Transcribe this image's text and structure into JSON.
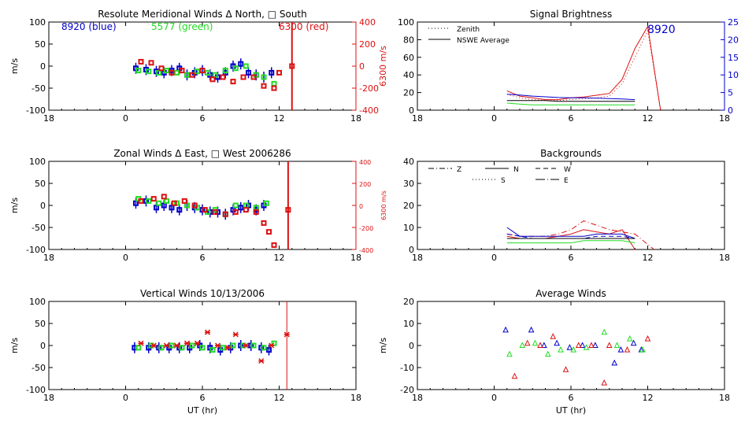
{
  "colors": {
    "blue": "#0000cc",
    "green": "#22dd22",
    "red": "#dd1111",
    "black": "#000000"
  },
  "chart_data": [
    {
      "id": "meridional",
      "type": "scatter",
      "title": "Resolute Meridional Winds Δ North, □ South",
      "ylabel": "m/s",
      "y2label": "6300 m/s",
      "xlim": [
        -6,
        18
      ],
      "ylim": [
        -100,
        100
      ],
      "y2lim": [
        -400,
        400
      ],
      "x_ticks": [
        "18",
        "0",
        "6",
        "12",
        "18"
      ],
      "y_ticks": [
        "100",
        "50",
        "0",
        "-50",
        "-100"
      ],
      "y2_ticks": [
        "400",
        "200",
        "0",
        "-200",
        "-400"
      ],
      "annotations": [
        {
          "text": "8920 (blue)",
          "color": "blue"
        },
        {
          "text": "5577 (green)",
          "color": "green"
        },
        {
          "text": "6300 (red)",
          "color": "red"
        }
      ],
      "vline_x": 13,
      "series": [
        {
          "color": "blue",
          "marker": "square",
          "errorbars": true,
          "x": [
            0.8,
            1.6,
            2.4,
            3.0,
            3.6,
            4.2,
            4.8,
            5.4,
            6.0,
            6.6,
            7.2,
            7.8,
            8.4,
            9.0,
            9.6,
            10.2,
            10.8,
            11.4
          ],
          "y": [
            -5,
            -8,
            -12,
            -15,
            -10,
            -5,
            -20,
            -15,
            -10,
            -20,
            -25,
            -15,
            0,
            5,
            -15,
            -20,
            -25,
            -15
          ]
        },
        {
          "color": "green",
          "marker": "square",
          "x": [
            1.0,
            1.8,
            2.6,
            3.2,
            4.0,
            4.8,
            5.6,
            6.4,
            7.0,
            7.8,
            8.6,
            9.4,
            10.2,
            10.8,
            11.6
          ],
          "y": [
            -10,
            -12,
            -15,
            -10,
            -15,
            -20,
            -12,
            -15,
            -20,
            -10,
            -5,
            0,
            -20,
            -25,
            -40
          ]
        },
        {
          "color": "red",
          "marker": "square",
          "axis": "y2",
          "x": [
            1.2,
            2.0,
            2.8,
            3.6,
            4.4,
            5.2,
            6.0,
            6.8,
            7.6,
            8.4,
            9.2,
            10.0,
            10.8,
            11.6,
            12.0,
            13.0
          ],
          "y": [
            40,
            30,
            -20,
            -60,
            -40,
            -80,
            -40,
            -120,
            -100,
            -140,
            -100,
            -100,
            -180,
            -200,
            -60,
            0
          ]
        }
      ]
    },
    {
      "id": "brightness",
      "type": "line",
      "title": "Signal Brightness",
      "xlim": [
        -6,
        18
      ],
      "ylim": [
        0,
        100
      ],
      "y2lim": [
        0,
        25
      ],
      "x_ticks": [
        "18",
        "0",
        "6",
        "12",
        "18"
      ],
      "y_ticks": [
        "100",
        "80",
        "60",
        "40",
        "20",
        "0"
      ],
      "y2_ticks": [
        "25",
        "20",
        "15",
        "10",
        "5",
        "0"
      ],
      "legend": [
        {
          "label": "Zenith",
          "style": "dotted"
        },
        {
          "label": "NSWE Average",
          "style": "solid"
        }
      ],
      "annotation": "8920",
      "series": [
        {
          "color": "red",
          "style": "solid",
          "x": [
            1,
            2,
            3,
            4,
            5,
            6,
            7,
            8,
            9,
            10,
            11,
            12,
            13
          ],
          "y": [
            22,
            16,
            14,
            12,
            12,
            14,
            15,
            17,
            19,
            35,
            70,
            95,
            0
          ]
        },
        {
          "color": "red",
          "style": "dotted",
          "x": [
            1,
            2,
            3,
            4,
            5,
            6,
            7,
            8,
            9,
            10,
            11,
            12,
            13
          ],
          "y": [
            18,
            14,
            12,
            11,
            11,
            12,
            13,
            14,
            16,
            30,
            60,
            90,
            0
          ]
        },
        {
          "color": "blue",
          "style": "solid",
          "axis": "y2",
          "x": [
            1,
            2,
            3,
            4,
            5,
            6,
            7,
            8,
            9,
            10,
            11
          ],
          "y": [
            4.5,
            4.3,
            4.0,
            3.8,
            3.6,
            3.5,
            3.5,
            3.4,
            3.3,
            3.2,
            3.0
          ]
        },
        {
          "color": "green",
          "style": "solid",
          "x": [
            1,
            2,
            3,
            4,
            5,
            6,
            7,
            8,
            9,
            10,
            11
          ],
          "y": [
            8,
            7,
            6,
            6,
            6,
            6,
            6,
            6,
            6,
            6,
            6
          ]
        },
        {
          "color": "black",
          "style": "solid",
          "x": [
            1,
            2,
            3,
            4,
            5,
            6,
            7,
            8,
            9,
            10,
            11
          ],
          "y": [
            11,
            11,
            11,
            11,
            10,
            10,
            10,
            10,
            10,
            10,
            10
          ]
        }
      ]
    },
    {
      "id": "zonal",
      "type": "scatter",
      "title": "Zonal Winds Δ East, □ West 2006286",
      "ylabel": "m/s",
      "y2label": "6300 m/s",
      "xlim": [
        -6,
        18
      ],
      "ylim": [
        -100,
        100
      ],
      "y2lim": [
        -400,
        400
      ],
      "x_ticks": [
        "18",
        "0",
        "6",
        "12",
        "18"
      ],
      "y_ticks": [
        "100",
        "50",
        "0",
        "-50",
        "-100"
      ],
      "y2_ticks": [
        "400",
        "200",
        "0",
        "-200",
        "-400"
      ],
      "vline_x": 12.7,
      "series": [
        {
          "color": "blue",
          "marker": "square",
          "errorbars": true,
          "x": [
            0.8,
            1.6,
            2.4,
            3.0,
            3.6,
            4.2,
            4.8,
            5.4,
            6.0,
            6.6,
            7.2,
            7.8,
            8.4,
            9.0,
            9.6,
            10.2,
            10.8
          ],
          "y": [
            5,
            10,
            -5,
            0,
            -5,
            -10,
            0,
            -5,
            -10,
            -15,
            -15,
            -20,
            -10,
            -5,
            0,
            -10,
            0
          ]
        },
        {
          "color": "green",
          "marker": "square",
          "x": [
            1.0,
            1.8,
            2.6,
            3.2,
            4.0,
            4.8,
            5.6,
            6.4,
            7.0,
            7.8,
            8.6,
            9.4,
            10.2,
            11.0
          ],
          "y": [
            15,
            10,
            5,
            10,
            5,
            0,
            -5,
            -15,
            -10,
            -20,
            0,
            0,
            -5,
            5
          ]
        },
        {
          "color": "red",
          "marker": "square",
          "axis": "y2",
          "x": [
            1.2,
            2.2,
            3.0,
            3.8,
            4.6,
            5.4,
            6.2,
            7.0,
            7.8,
            8.6,
            9.4,
            10.2,
            10.8,
            11.2,
            11.6,
            12.7
          ],
          "y": [
            40,
            60,
            80,
            20,
            40,
            0,
            -40,
            -60,
            -80,
            -60,
            -40,
            -60,
            -160,
            -240,
            -360,
            -40
          ]
        }
      ]
    },
    {
      "id": "backgrounds",
      "type": "line",
      "title": "Backgrounds",
      "xlim": [
        -6,
        18
      ],
      "ylim": [
        0,
        40
      ],
      "x_ticks": [
        "18",
        "0",
        "6",
        "12",
        "18"
      ],
      "y_ticks": [
        "40",
        "30",
        "20",
        "10",
        "0"
      ],
      "legend": [
        {
          "label": "Z",
          "style": "dashdot"
        },
        {
          "label": "N",
          "style": "solid"
        },
        {
          "label": "W",
          "style": "dashed"
        },
        {
          "label": "S",
          "style": "dotted"
        },
        {
          "label": "E",
          "style": "longdashdot"
        }
      ],
      "series": [
        {
          "color": "red",
          "style": "dashdot",
          "x": [
            1,
            2,
            3,
            4,
            5,
            6,
            7,
            8,
            9,
            10,
            11,
            12.5
          ],
          "y": [
            7,
            6,
            6,
            6,
            7,
            9,
            13,
            11,
            9,
            8,
            7,
            0
          ]
        },
        {
          "color": "red",
          "style": "solid",
          "x": [
            1,
            2,
            3,
            4,
            5,
            6,
            7,
            8,
            9,
            10,
            11
          ],
          "y": [
            6,
            5,
            5,
            5,
            6,
            7,
            9,
            8,
            7,
            9,
            0
          ]
        },
        {
          "color": "blue",
          "style": "solid",
          "x": [
            1,
            2,
            3,
            4,
            5,
            6,
            7,
            8,
            9,
            10,
            11
          ],
          "y": [
            10,
            6,
            6,
            6,
            6,
            6,
            6,
            7,
            7,
            7,
            5
          ]
        },
        {
          "color": "blue",
          "style": "dashed",
          "x": [
            1,
            2,
            3,
            4,
            5,
            6,
            7,
            8,
            9,
            10,
            11
          ],
          "y": [
            7,
            6,
            5,
            5,
            5,
            5,
            5,
            6,
            6,
            6,
            5
          ]
        },
        {
          "color": "green",
          "style": "solid",
          "x": [
            1,
            2,
            3,
            4,
            5,
            6,
            7,
            8,
            9,
            10,
            11
          ],
          "y": [
            3,
            3,
            3,
            3,
            3,
            3,
            4,
            4,
            4,
            4,
            3
          ]
        },
        {
          "color": "black",
          "style": "solid",
          "x": [
            1,
            2,
            3,
            4,
            5,
            6,
            7,
            8,
            9,
            10,
            11
          ],
          "y": [
            5,
            5,
            5,
            5,
            5,
            5,
            5,
            5,
            5,
            5,
            5
          ]
        }
      ]
    },
    {
      "id": "vertical",
      "type": "scatter",
      "title": "Vertical Winds 10/13/2006",
      "ylabel": "m/s",
      "xlabel": "UT (hr)",
      "xlim": [
        -6,
        18
      ],
      "ylim": [
        -100,
        100
      ],
      "x_ticks": [
        "18",
        "0",
        "6",
        "12",
        "18"
      ],
      "y_ticks": [
        "100",
        "50",
        "0",
        "-50",
        "-100"
      ],
      "vline_x": 12.6,
      "series": [
        {
          "color": "blue",
          "marker": "square",
          "errorbars": true,
          "x": [
            0.7,
            1.8,
            2.6,
            3.4,
            4.2,
            5.0,
            5.8,
            6.6,
            7.4,
            8.2,
            9.0,
            9.8,
            10.6,
            11.2
          ],
          "y": [
            -5,
            -5,
            -5,
            -5,
            -5,
            -5,
            0,
            -5,
            -10,
            -5,
            0,
            0,
            -5,
            -10
          ]
        },
        {
          "color": "green",
          "marker": "square",
          "x": [
            1.0,
            2.0,
            2.8,
            3.6,
            4.4,
            5.2,
            6.0,
            6.8,
            7.6,
            8.4,
            9.2,
            10.0,
            10.8,
            11.6
          ],
          "y": [
            -5,
            0,
            -5,
            0,
            -5,
            0,
            -5,
            -10,
            -5,
            0,
            0,
            0,
            -5,
            5
          ]
        },
        {
          "color": "red",
          "marker": "star",
          "x": [
            1.2,
            2.2,
            3.2,
            4.0,
            4.8,
            5.6,
            6.4,
            7.2,
            8.0,
            8.6,
            9.4,
            10.6,
            11.4,
            12.6
          ],
          "y": [
            5,
            0,
            0,
            0,
            5,
            5,
            30,
            0,
            -5,
            25,
            0,
            -35,
            0,
            25
          ]
        }
      ]
    },
    {
      "id": "average",
      "type": "scatter",
      "title": "Average Winds",
      "ylabel": "m/s",
      "xlabel": "UT (hr)",
      "xlim": [
        -6,
        18
      ],
      "ylim": [
        -20,
        20
      ],
      "x_ticks": [
        "18",
        "0",
        "6",
        "12",
        "18"
      ],
      "y_ticks": [
        "20",
        "10",
        "0",
        "-10",
        "-20"
      ],
      "series": [
        {
          "color": "blue",
          "marker": "triangle",
          "x": [
            0.9,
            2.9,
            3.9,
            4.9,
            5.9,
            6.9,
            7.9,
            9.4,
            9.9,
            10.9,
            11.5
          ],
          "y": [
            7,
            7,
            0,
            1,
            -1,
            0,
            0,
            -8,
            -2,
            1,
            -2
          ]
        },
        {
          "color": "green",
          "marker": "triangle",
          "x": [
            1.2,
            2.2,
            3.2,
            4.2,
            5.2,
            6.2,
            7.2,
            8.6,
            9.6,
            10.6,
            11.6
          ],
          "y": [
            -4,
            0,
            1,
            -4,
            -2,
            -2,
            -1,
            6,
            0,
            3,
            -2
          ]
        },
        {
          "color": "red",
          "marker": "triangle",
          "x": [
            1.6,
            2.6,
            3.6,
            4.6,
            5.6,
            6.6,
            7.6,
            8.6,
            9.0,
            10.4,
            12.0
          ],
          "y": [
            -14,
            1,
            0,
            4,
            -11,
            0,
            0,
            -17,
            0,
            -2,
            3
          ]
        }
      ]
    }
  ]
}
